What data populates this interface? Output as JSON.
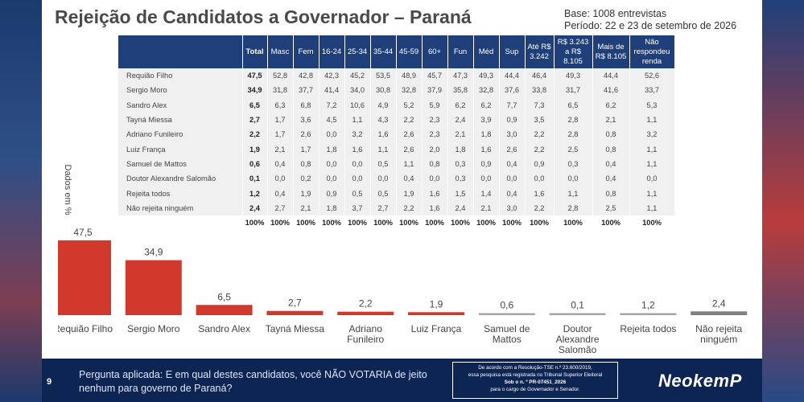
{
  "header": {
    "title": "Rejeição de Candidatos a Governador – Paraná",
    "base": "Base: 1008 entrevistas",
    "period": "Período: 22 e 23 de setembro de 2026"
  },
  "axis_label": "Dados em %",
  "table": {
    "columns": [
      "Total",
      "Masc",
      "Fem",
      "16-24",
      "25-34",
      "35-44",
      "45-59",
      "60+",
      "Fun",
      "Méd",
      "Sup",
      "Até R$ 3.242",
      "R$ 3.243 a R$ 8.105",
      "Mais de R$ 8.105",
      "Não respondeu renda"
    ],
    "rows": [
      {
        "name": "Requião Filho",
        "values": [
          "47,5",
          "52,8",
          "42,8",
          "42,3",
          "45,2",
          "53,5",
          "48,9",
          "45,7",
          "47,3",
          "49,3",
          "44,4",
          "46,4",
          "49,3",
          "44,4",
          "52,6"
        ]
      },
      {
        "name": "Sergio Moro",
        "values": [
          "34,9",
          "31,8",
          "37,7",
          "41,4",
          "34,0",
          "30,8",
          "32,8",
          "37,9",
          "35,8",
          "32,8",
          "37,6",
          "33,8",
          "31,7",
          "41,6",
          "33,7"
        ]
      },
      {
        "name": "Sandro Alex",
        "values": [
          "6,5",
          "6,3",
          "6,8",
          "7,2",
          "10,6",
          "4,9",
          "5,2",
          "5,9",
          "6,2",
          "6,2",
          "7,7",
          "7,3",
          "6,5",
          "6,2",
          "5,3"
        ]
      },
      {
        "name": "Tayná Miessa",
        "values": [
          "2,7",
          "1,7",
          "3,6",
          "4,5",
          "1,1",
          "4,3",
          "2,2",
          "2,3",
          "2,4",
          "3,9",
          "0,9",
          "3,5",
          "2,8",
          "2,1",
          "1,1"
        ]
      },
      {
        "name": "Adriano Funileiro",
        "values": [
          "2,2",
          "1,7",
          "2,6",
          "0,0",
          "3,2",
          "1,6",
          "2,6",
          "2,3",
          "2,1",
          "1,8",
          "3,0",
          "2,2",
          "2,8",
          "0,8",
          "3,2"
        ]
      },
      {
        "name": "Luiz França",
        "values": [
          "1,9",
          "2,1",
          "1,7",
          "1,8",
          "1,6",
          "1,1",
          "2,6",
          "2,0",
          "1,8",
          "1,6",
          "2,6",
          "2,2",
          "2,5",
          "0,8",
          "1,1"
        ]
      },
      {
        "name": "Samuel de Mattos",
        "values": [
          "0,6",
          "0,4",
          "0,8",
          "0,0",
          "0,0",
          "0,5",
          "1,1",
          "0,8",
          "0,3",
          "0,9",
          "0,4",
          "0,9",
          "0,3",
          "0,4",
          "1,1"
        ]
      },
      {
        "name": "Doutor Alexandre Salomão",
        "values": [
          "0,1",
          "0,0",
          "0,2",
          "0,0",
          "0,0",
          "0,0",
          "0,4",
          "0,0",
          "0,3",
          "0,0",
          "0,0",
          "0,0",
          "0,0",
          "0,4",
          "0,0"
        ]
      },
      {
        "name": "Rejeita todos",
        "values": [
          "1,2",
          "0,4",
          "1,9",
          "0,9",
          "0,5",
          "0,5",
          "1,9",
          "1,6",
          "1,5",
          "1,4",
          "0,4",
          "1,6",
          "1,1",
          "0,8",
          "1,1"
        ]
      },
      {
        "name": "Não rejeita ninguém",
        "values": [
          "2,4",
          "2,7",
          "2,1",
          "1,8",
          "3,7",
          "2,7",
          "2,2",
          "1,6",
          "2,4",
          "2,1",
          "3,0",
          "2,2",
          "2,8",
          "2,5",
          "1,1"
        ]
      }
    ],
    "totals": [
      "100%",
      "100%",
      "100%",
      "100%",
      "100%",
      "100%",
      "100%",
      "100%",
      "100%",
      "100%",
      "100%",
      "100%",
      "100%",
      "100%",
      "100%"
    ]
  },
  "chart_data": {
    "type": "bar",
    "categories": [
      "Requião Filho",
      "Sergio Moro",
      "Sandro Alex",
      "Tayná Miessa",
      "Adriano Funileiro",
      "Luiz França",
      "Samuel de Mattos",
      "Doutor Alexandre Salomão",
      "Rejeita todos",
      "Não rejeita ninguém"
    ],
    "category_lines": [
      [
        "Requião Filho"
      ],
      [
        "Sergio Moro"
      ],
      [
        "Sandro Alex"
      ],
      [
        "Tayná Miessa"
      ],
      [
        "Adriano",
        "Funileiro"
      ],
      [
        "Luiz França"
      ],
      [
        "Samuel de",
        "Mattos"
      ],
      [
        "Doutor",
        "Alexandre",
        "Salomão"
      ],
      [
        "Rejeita todos"
      ],
      [
        "Não rejeita",
        "ninguém"
      ]
    ],
    "values": [
      47.5,
      34.9,
      6.5,
      2.7,
      2.2,
      1.9,
      0.6,
      0.1,
      1.2,
      2.4
    ],
    "labels": [
      "47,5",
      "34,9",
      "6,5",
      "2,7",
      "2,2",
      "1,9",
      "0,6",
      "0,1",
      "1,2",
      "2,4"
    ],
    "colors": [
      "#d0392b",
      "#d0392b",
      "#d0392b",
      "#d0392b",
      "#d0392b",
      "#d0392b",
      "#a6a6a6",
      "#a6a6a6",
      "#a6a6a6",
      "#7f7f7f"
    ],
    "ylim": [
      0,
      50
    ]
  },
  "footer": {
    "page": "9",
    "question_line1": "Pergunta aplicada: E em qual destes candidatos, você NÃO VOTARIA de jeito",
    "question_line2": "nenhum para governo de Paraná?",
    "legal": [
      "De acordo com a Resolução-TSE n.º 23.600/2019,",
      "essa pesquisa está registrada no Tribunal Superior Eleitoral",
      "Sob o n. º PR-07451_2026",
      "para o cargo de Governador e Senador."
    ],
    "logo": "NeokemP"
  }
}
